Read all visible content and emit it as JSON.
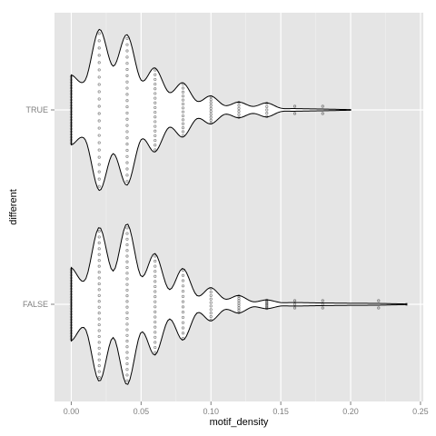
{
  "chart_data": {
    "type": "violin",
    "title": "",
    "xlabel": "motif_density",
    "ylabel": "different",
    "xlim": [
      -0.012,
      0.252
    ],
    "x_ticks": [
      0.0,
      0.05,
      0.1,
      0.15,
      0.2,
      0.25
    ],
    "x_tick_labels": [
      "0.00",
      "0.05",
      "0.10",
      "0.15",
      "0.20",
      "0.25"
    ],
    "categories": [
      "FALSE",
      "TRUE"
    ],
    "grid": true,
    "legend": "none",
    "colors": {
      "panel_bg": "#e5e5e5",
      "grid_major": "#ffffff",
      "grid_minor": "#f2f2f2",
      "violin_fill": "#ffffff",
      "violin_line": "#000000",
      "point": "#000000",
      "tick_text": "#7f7f7f"
    },
    "series": [
      {
        "category": "TRUE",
        "max_x": 0.2,
        "density_profile": [
          [
            0.0,
            0.4
          ],
          [
            0.01,
            0.34
          ],
          [
            0.02,
            0.92
          ],
          [
            0.03,
            0.5
          ],
          [
            0.04,
            0.86
          ],
          [
            0.05,
            0.34
          ],
          [
            0.06,
            0.48
          ],
          [
            0.07,
            0.2
          ],
          [
            0.08,
            0.31
          ],
          [
            0.09,
            0.1
          ],
          [
            0.1,
            0.16
          ],
          [
            0.11,
            0.05
          ],
          [
            0.12,
            0.09
          ],
          [
            0.13,
            0.04
          ],
          [
            0.14,
            0.08
          ],
          [
            0.15,
            0.02
          ],
          [
            0.16,
            0.015
          ],
          [
            0.18,
            0.01
          ],
          [
            0.2,
            0.004
          ]
        ],
        "points": [
          {
            "x": 0.0,
            "n": 24
          },
          {
            "x": 0.02,
            "n": 22
          },
          {
            "x": 0.04,
            "n": 24
          },
          {
            "x": 0.06,
            "n": 18
          },
          {
            "x": 0.08,
            "n": 14
          },
          {
            "x": 0.1,
            "n": 10
          },
          {
            "x": 0.12,
            "n": 6
          },
          {
            "x": 0.14,
            "n": 5
          },
          {
            "x": 0.16,
            "n": 2
          },
          {
            "x": 0.18,
            "n": 2
          }
        ]
      },
      {
        "category": "FALSE",
        "max_x": 0.24,
        "density_profile": [
          [
            0.0,
            0.42
          ],
          [
            0.01,
            0.28
          ],
          [
            0.02,
            0.88
          ],
          [
            0.03,
            0.38
          ],
          [
            0.04,
            0.92
          ],
          [
            0.05,
            0.32
          ],
          [
            0.06,
            0.58
          ],
          [
            0.07,
            0.17
          ],
          [
            0.08,
            0.41
          ],
          [
            0.09,
            0.1
          ],
          [
            0.1,
            0.19
          ],
          [
            0.11,
            0.06
          ],
          [
            0.12,
            0.1
          ],
          [
            0.13,
            0.03
          ],
          [
            0.14,
            0.05
          ],
          [
            0.15,
            0.02
          ],
          [
            0.16,
            0.02
          ],
          [
            0.18,
            0.015
          ],
          [
            0.2,
            0.012
          ],
          [
            0.22,
            0.01
          ],
          [
            0.24,
            0.004
          ]
        ],
        "points": [
          {
            "x": 0.0,
            "n": 26
          },
          {
            "x": 0.02,
            "n": 26
          },
          {
            "x": 0.04,
            "n": 28
          },
          {
            "x": 0.06,
            "n": 20
          },
          {
            "x": 0.08,
            "n": 14
          },
          {
            "x": 0.1,
            "n": 10
          },
          {
            "x": 0.12,
            "n": 8
          },
          {
            "x": 0.14,
            "n": 7
          },
          {
            "x": 0.16,
            "n": 3
          },
          {
            "x": 0.18,
            "n": 3
          },
          {
            "x": 0.22,
            "n": 2
          },
          {
            "x": 0.24,
            "n": 1
          }
        ]
      }
    ]
  }
}
